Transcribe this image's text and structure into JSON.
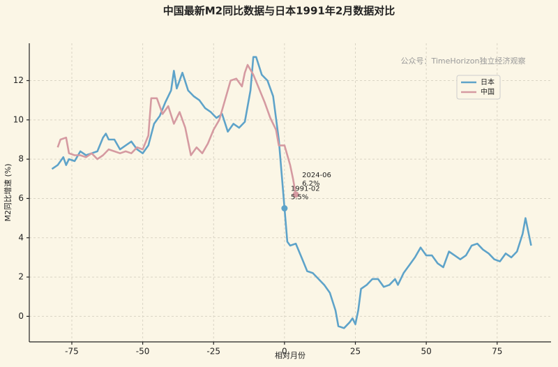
{
  "chart_data": {
    "type": "line",
    "title": "中国最新M2同比数据与日本1991年2月数据对比",
    "watermark": "公众号：TimeHorizon独立经济观察",
    "xlabel": "相对月份",
    "ylabel": "M2同比增速 (%)",
    "xlim": [
      -90,
      94
    ],
    "ylim": [
      -1.3,
      13.9
    ],
    "xticks": [
      -75,
      -50,
      -25,
      0,
      25,
      50,
      75
    ],
    "yticks": [
      0,
      2,
      4,
      6,
      8,
      10,
      12
    ],
    "grid": true,
    "legend": "upper right",
    "series": [
      {
        "name": "日本",
        "color": "#5ea3c9",
        "x": [
          -82,
          -80,
          -78,
          -77,
          -76,
          -74,
          -72,
          -70,
          -68,
          -66,
          -64,
          -63,
          -62,
          -60,
          -58,
          -56,
          -54,
          -52,
          -50,
          -48,
          -46,
          -44,
          -42,
          -40,
          -39,
          -38,
          -36,
          -34,
          -32,
          -30,
          -28,
          -26,
          -24,
          -22,
          -20,
          -18,
          -16,
          -14,
          -12,
          -11,
          -10,
          -8,
          -6,
          -4,
          -2,
          0,
          1,
          2,
          4,
          6,
          8,
          10,
          12,
          14,
          16,
          18,
          19,
          21,
          23,
          24,
          25,
          26,
          27,
          29,
          31,
          33,
          35,
          37,
          39,
          40,
          42,
          44,
          46,
          48,
          50,
          52,
          54,
          56,
          58,
          60,
          62,
          64,
          66,
          68,
          70,
          72,
          74,
          76,
          78,
          80,
          82,
          84,
          85,
          87
        ],
        "values": [
          7.5,
          7.7,
          8.1,
          7.7,
          8.0,
          7.9,
          8.4,
          8.2,
          8.3,
          8.4,
          9.1,
          9.3,
          9.0,
          9.0,
          8.5,
          8.7,
          8.9,
          8.5,
          8.3,
          8.7,
          9.8,
          10.2,
          10.9,
          11.5,
          12.5,
          11.6,
          12.4,
          11.5,
          11.2,
          11.0,
          10.6,
          10.4,
          10.1,
          10.3,
          9.4,
          9.8,
          9.6,
          9.9,
          11.5,
          13.2,
          13.2,
          12.3,
          12.0,
          11.2,
          9.0,
          5.5,
          3.8,
          3.6,
          3.7,
          3.0,
          2.3,
          2.2,
          1.9,
          1.6,
          1.2,
          0.3,
          -0.5,
          -0.6,
          -0.3,
          -0.1,
          -0.4,
          0.3,
          1.4,
          1.6,
          1.9,
          1.9,
          1.5,
          1.6,
          1.9,
          1.6,
          2.2,
          2.6,
          3.0,
          3.5,
          3.1,
          3.1,
          2.7,
          2.5,
          3.3,
          3.1,
          2.9,
          3.1,
          3.6,
          3.7,
          3.4,
          3.2,
          2.9,
          2.8,
          3.2,
          3.0,
          3.3,
          4.2,
          5.0,
          3.6
        ]
      },
      {
        "name": "中国",
        "color": "#d59aa1",
        "x": [
          -80,
          -79,
          -77,
          -76,
          -74,
          -72,
          -70,
          -68,
          -66,
          -64,
          -62,
          -60,
          -58,
          -56,
          -54,
          -52,
          -50,
          -48,
          -47,
          -45,
          -43,
          -41,
          -39,
          -37,
          -35,
          -33,
          -31,
          -29,
          -27,
          -25,
          -23,
          -21,
          -19,
          -17,
          -15,
          -14,
          -13,
          -11,
          -9,
          -7,
          -5,
          -3,
          -2,
          0,
          2,
          3,
          4
        ],
        "values": [
          8.6,
          9.0,
          9.1,
          8.3,
          8.2,
          8.2,
          8.1,
          8.3,
          8.0,
          8.2,
          8.5,
          8.4,
          8.3,
          8.4,
          8.3,
          8.6,
          8.5,
          9.2,
          11.1,
          11.1,
          10.3,
          10.7,
          9.8,
          10.4,
          9.6,
          8.2,
          8.6,
          8.3,
          8.8,
          9.5,
          10.0,
          11.0,
          12.0,
          12.1,
          11.7,
          12.4,
          12.8,
          12.3,
          11.6,
          10.9,
          10.1,
          9.5,
          8.7,
          8.7,
          7.7,
          7.0,
          6.2
        ]
      }
    ],
    "annotations": [
      {
        "series": "中国",
        "label": "2024-06",
        "value_label": "6.2%"
      },
      {
        "series": "日本",
        "label": "1991-02",
        "value_label": "5.5%"
      }
    ]
  }
}
